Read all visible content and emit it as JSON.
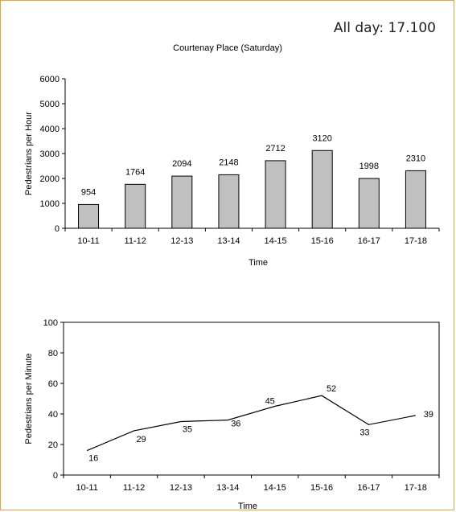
{
  "all_day": "All day: 17.100",
  "colors": {
    "border": "#e8a33d",
    "bar_fill": "#c0c0c0",
    "line": "#000000"
  },
  "chart_data": [
    {
      "type": "bar",
      "title": "Courtenay Place (Saturday)",
      "xlabel": "Time",
      "ylabel": "Pedestrians per Hour",
      "categories": [
        "10-11",
        "11-12",
        "12-13",
        "13-14",
        "14-15",
        "15-16",
        "16-17",
        "17-18"
      ],
      "values": [
        954,
        1764,
        2094,
        2148,
        2712,
        3120,
        1998,
        2310
      ],
      "ylim": [
        0,
        6000
      ],
      "yticks": [
        0,
        1000,
        2000,
        3000,
        4000,
        5000,
        6000
      ],
      "grid": false,
      "legend": "none"
    },
    {
      "type": "line",
      "title": "",
      "xlabel": "Time",
      "ylabel": "Pedestrians per Minute",
      "categories": [
        "10-11",
        "11-12",
        "12-13",
        "13-14",
        "14-15",
        "15-16",
        "16-17",
        "17-18"
      ],
      "values": [
        16,
        29,
        35,
        36,
        45,
        52,
        33,
        39
      ],
      "ylim": [
        0,
        100
      ],
      "yticks": [
        0,
        20,
        40,
        60,
        80,
        100
      ],
      "grid": false,
      "legend": "none"
    }
  ]
}
